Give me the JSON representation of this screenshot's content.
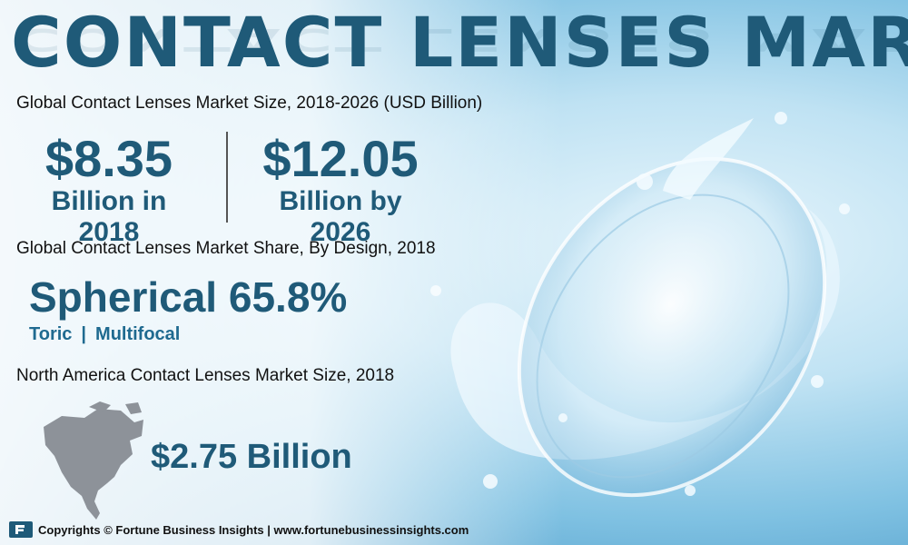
{
  "title": "CONTACT LENSES MARKET",
  "section_market_size": {
    "heading": "Global Contact Lenses Market Size, 2018-2026 (USD Billion)",
    "left_value": "$8.35",
    "left_caption": "Billion in 2018",
    "right_value": "$12.05",
    "right_caption": "Billion by 2026"
  },
  "section_design_share": {
    "heading": "Global Contact Lenses Market Share, By Design, 2018",
    "lead": "Spherical 65.8%",
    "others": [
      "Toric",
      "Multifocal"
    ],
    "separator": "|"
  },
  "section_north_america": {
    "heading": "North America Contact Lenses Market Size, 2018",
    "value": "$2.75 Billion"
  },
  "footer": {
    "text": "Copyrights © Fortune Business Insights | www.fortunebusinessinsights.com"
  },
  "colors": {
    "accent": "#1f5a78",
    "background_light": "#e9f6fc",
    "background_dark": "#3f8fc0"
  },
  "icons": [
    "north-america-map-icon",
    "fortune-business-insights-logo-icon",
    "contact-lens-splash-illustration"
  ]
}
